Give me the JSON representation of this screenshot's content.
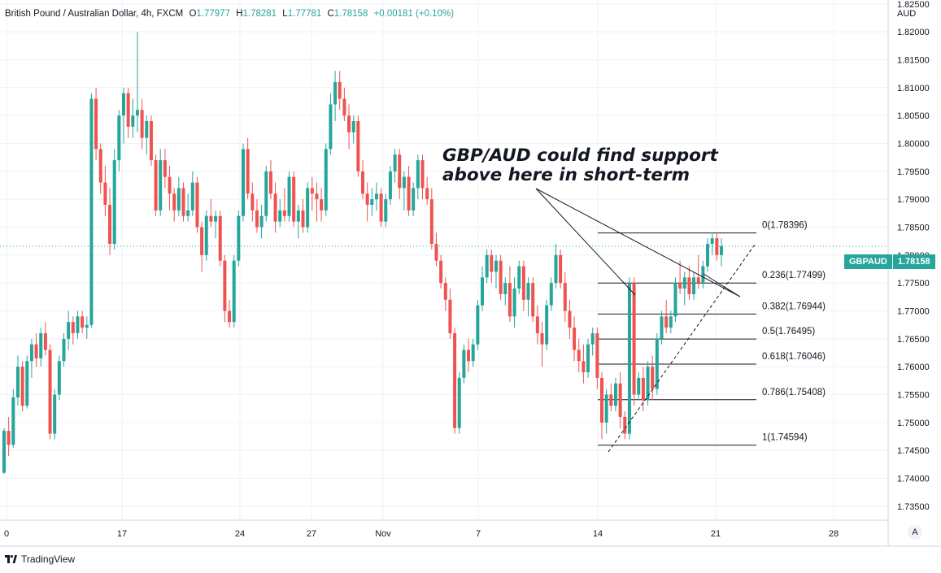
{
  "legend": {
    "title": "British Pound / Australian Dollar, 4h, FXCM",
    "open_label": "O",
    "open": "1.77977",
    "high_label": "H",
    "high": "1.78281",
    "low_label": "L",
    "low": "1.77781",
    "close_label": "C",
    "close": "1.78158",
    "change": "+0.00181 (+0.10%)"
  },
  "currency_label": "AUD",
  "price_tag": {
    "symbol": "GBPAUD",
    "value": "1.78158"
  },
  "annotation": {
    "line1": "GBP/AUD could find support",
    "line2": "above here in short-term"
  },
  "footer": {
    "brand": "TradingView"
  },
  "auto_button": "A",
  "colors": {
    "up": "#26a69a",
    "down": "#ef5350",
    "grid": "#eef1f6",
    "text": "#131722",
    "fib_line": "#131722"
  },
  "chart_data": {
    "type": "candlestick",
    "symbol": "GBPAUD",
    "timeframe": "4h",
    "y_axis": {
      "ticks": [
        "1.82500",
        "1.82000",
        "1.81500",
        "1.81000",
        "1.80500",
        "1.80000",
        "1.79500",
        "1.79000",
        "1.78500",
        "1.78000",
        "1.77500",
        "1.77000",
        "1.76500",
        "1.76000",
        "1.75500",
        "1.75000",
        "1.74500",
        "1.74000",
        "1.73500"
      ],
      "ylim": [
        1.7325,
        1.8257
      ]
    },
    "x_axis": {
      "tick_labels": [
        "0",
        "17",
        "24",
        "27",
        "Nov",
        "7",
        "14",
        "21",
        "28"
      ]
    },
    "series": [
      {
        "name": "GBPAUD",
        "candles": [
          [
            1.741,
            1.749,
            1.7408,
            1.7485
          ],
          [
            1.7485,
            1.751,
            1.744,
            1.746
          ],
          [
            1.746,
            1.756,
            1.7455,
            1.7545
          ],
          [
            1.7545,
            1.762,
            1.753,
            1.76
          ],
          [
            1.76,
            1.761,
            1.752,
            1.753
          ],
          [
            1.753,
            1.762,
            1.7525,
            1.761
          ],
          [
            1.761,
            1.765,
            1.758,
            1.764
          ],
          [
            1.764,
            1.766,
            1.76,
            1.7615
          ],
          [
            1.7615,
            1.767,
            1.76,
            1.766
          ],
          [
            1.766,
            1.768,
            1.762,
            1.763
          ],
          [
            1.763,
            1.764,
            1.747,
            1.748
          ],
          [
            1.748,
            1.756,
            1.747,
            1.755
          ],
          [
            1.755,
            1.762,
            1.754,
            1.761
          ],
          [
            1.761,
            1.766,
            1.76,
            1.765
          ],
          [
            1.765,
            1.77,
            1.763,
            1.768
          ],
          [
            1.768,
            1.769,
            1.764,
            1.766
          ],
          [
            1.766,
            1.77,
            1.765,
            1.769
          ],
          [
            1.769,
            1.77,
            1.766,
            1.767
          ],
          [
            1.767,
            1.769,
            1.765,
            1.7675
          ],
          [
            1.7675,
            1.809,
            1.767,
            1.808
          ],
          [
            1.808,
            1.81,
            1.797,
            1.799
          ],
          [
            1.799,
            1.8,
            1.791,
            1.793
          ],
          [
            1.793,
            1.796,
            1.787,
            1.789
          ],
          [
            1.789,
            1.792,
            1.78,
            1.782
          ],
          [
            1.782,
            1.799,
            1.781,
            1.797
          ],
          [
            1.797,
            1.806,
            1.795,
            1.805
          ],
          [
            1.805,
            1.81,
            1.8,
            1.809
          ],
          [
            1.809,
            1.81,
            1.801,
            1.803
          ],
          [
            1.803,
            1.808,
            1.801,
            1.805
          ],
          [
            1.805,
            1.82,
            1.802,
            1.806
          ],
          [
            1.806,
            1.808,
            1.799,
            1.801
          ],
          [
            1.801,
            1.805,
            1.798,
            1.804
          ],
          [
            1.804,
            1.805,
            1.796,
            1.797
          ],
          [
            1.797,
            1.798,
            1.787,
            1.788
          ],
          [
            1.788,
            1.799,
            1.787,
            1.797
          ],
          [
            1.797,
            1.799,
            1.792,
            1.794
          ],
          [
            1.794,
            1.796,
            1.788,
            1.791
          ],
          [
            1.791,
            1.792,
            1.786,
            1.788
          ],
          [
            1.788,
            1.794,
            1.787,
            1.792
          ],
          [
            1.792,
            1.793,
            1.786,
            1.787
          ],
          [
            1.787,
            1.791,
            1.786,
            1.788
          ],
          [
            1.788,
            1.795,
            1.787,
            1.793
          ],
          [
            1.793,
            1.794,
            1.784,
            1.785
          ],
          [
            1.785,
            1.786,
            1.777,
            1.78
          ],
          [
            1.78,
            1.788,
            1.779,
            1.787
          ],
          [
            1.787,
            1.79,
            1.785,
            1.786
          ],
          [
            1.786,
            1.788,
            1.783,
            1.787
          ],
          [
            1.787,
            1.788,
            1.778,
            1.779
          ],
          [
            1.779,
            1.78,
            1.768,
            1.77
          ],
          [
            1.77,
            1.772,
            1.767,
            1.768
          ],
          [
            1.768,
            1.78,
            1.767,
            1.779
          ],
          [
            1.779,
            1.788,
            1.778,
            1.787
          ],
          [
            1.787,
            1.8,
            1.786,
            1.799
          ],
          [
            1.799,
            1.801,
            1.79,
            1.791
          ],
          [
            1.791,
            1.793,
            1.786,
            1.788
          ],
          [
            1.788,
            1.79,
            1.784,
            1.785
          ],
          [
            1.785,
            1.789,
            1.783,
            1.787
          ],
          [
            1.787,
            1.796,
            1.786,
            1.795
          ],
          [
            1.795,
            1.797,
            1.79,
            1.791
          ],
          [
            1.791,
            1.793,
            1.784,
            1.786
          ],
          [
            1.786,
            1.79,
            1.785,
            1.788
          ],
          [
            1.788,
            1.792,
            1.786,
            1.787
          ],
          [
            1.787,
            1.795,
            1.786,
            1.794
          ],
          [
            1.794,
            1.795,
            1.785,
            1.786
          ],
          [
            1.786,
            1.789,
            1.783,
            1.788
          ],
          [
            1.788,
            1.79,
            1.784,
            1.785
          ],
          [
            1.785,
            1.793,
            1.784,
            1.792
          ],
          [
            1.792,
            1.794,
            1.788,
            1.791
          ],
          [
            1.791,
            1.793,
            1.786,
            1.79
          ],
          [
            1.79,
            1.792,
            1.786,
            1.788
          ],
          [
            1.788,
            1.8,
            1.787,
            1.799
          ],
          [
            1.799,
            1.809,
            1.798,
            1.807
          ],
          [
            1.807,
            1.813,
            1.804,
            1.811
          ],
          [
            1.811,
            1.813,
            1.806,
            1.808
          ],
          [
            1.808,
            1.81,
            1.804,
            1.805
          ],
          [
            1.805,
            1.807,
            1.799,
            1.802
          ],
          [
            1.802,
            1.805,
            1.8,
            1.804
          ],
          [
            1.804,
            1.805,
            1.794,
            1.795
          ],
          [
            1.795,
            1.797,
            1.79,
            1.791
          ],
          [
            1.791,
            1.793,
            1.786,
            1.789
          ],
          [
            1.789,
            1.792,
            1.787,
            1.79
          ],
          [
            1.79,
            1.793,
            1.788,
            1.791
          ],
          [
            1.791,
            1.792,
            1.785,
            1.786
          ],
          [
            1.786,
            1.791,
            1.785,
            1.79
          ],
          [
            1.79,
            1.796,
            1.789,
            1.795
          ],
          [
            1.795,
            1.799,
            1.793,
            1.798
          ],
          [
            1.798,
            1.799,
            1.79,
            1.792
          ],
          [
            1.792,
            1.795,
            1.788,
            1.794
          ],
          [
            1.794,
            1.796,
            1.787,
            1.788
          ],
          [
            1.788,
            1.793,
            1.787,
            1.792
          ],
          [
            1.792,
            1.798,
            1.79,
            1.797
          ],
          [
            1.797,
            1.798,
            1.79,
            1.792
          ],
          [
            1.792,
            1.794,
            1.789,
            1.79
          ],
          [
            1.79,
            1.792,
            1.781,
            1.782
          ],
          [
            1.782,
            1.784,
            1.778,
            1.779
          ],
          [
            1.779,
            1.78,
            1.774,
            1.775
          ],
          [
            1.775,
            1.776,
            1.77,
            1.772
          ],
          [
            1.772,
            1.774,
            1.765,
            1.766
          ],
          [
            1.766,
            1.767,
            1.748,
            1.749
          ],
          [
            1.749,
            1.759,
            1.748,
            1.758
          ],
          [
            1.758,
            1.764,
            1.757,
            1.763
          ],
          [
            1.763,
            1.765,
            1.759,
            1.761
          ],
          [
            1.761,
            1.765,
            1.76,
            1.764
          ],
          [
            1.764,
            1.772,
            1.763,
            1.771
          ],
          [
            1.771,
            1.778,
            1.77,
            1.776
          ],
          [
            1.776,
            1.781,
            1.775,
            1.78
          ],
          [
            1.78,
            1.781,
            1.775,
            1.777
          ],
          [
            1.777,
            1.78,
            1.774,
            1.779
          ],
          [
            1.779,
            1.78,
            1.772,
            1.773
          ],
          [
            1.773,
            1.776,
            1.771,
            1.775
          ],
          [
            1.775,
            1.778,
            1.768,
            1.769
          ],
          [
            1.769,
            1.776,
            1.767,
            1.774
          ],
          [
            1.774,
            1.779,
            1.773,
            1.778
          ],
          [
            1.778,
            1.779,
            1.77,
            1.772
          ],
          [
            1.772,
            1.776,
            1.769,
            1.775
          ],
          [
            1.775,
            1.776,
            1.768,
            1.769
          ],
          [
            1.769,
            1.771,
            1.764,
            1.766
          ],
          [
            1.766,
            1.768,
            1.76,
            1.764
          ],
          [
            1.764,
            1.772,
            1.763,
            1.771
          ],
          [
            1.771,
            1.776,
            1.77,
            1.775
          ],
          [
            1.775,
            1.782,
            1.774,
            1.78
          ],
          [
            1.78,
            1.781,
            1.774,
            1.775
          ],
          [
            1.775,
            1.777,
            1.768,
            1.77
          ],
          [
            1.77,
            1.772,
            1.765,
            1.767
          ],
          [
            1.767,
            1.769,
            1.761,
            1.763
          ],
          [
            1.763,
            1.765,
            1.759,
            1.761
          ],
          [
            1.761,
            1.764,
            1.757,
            1.759
          ],
          [
            1.759,
            1.765,
            1.758,
            1.764
          ],
          [
            1.764,
            1.767,
            1.762,
            1.766
          ],
          [
            1.766,
            1.767,
            1.756,
            1.758
          ],
          [
            1.758,
            1.759,
            1.747,
            1.75
          ],
          [
            1.75,
            1.756,
            1.748,
            1.755
          ],
          [
            1.755,
            1.757,
            1.752,
            1.753
          ],
          [
            1.753,
            1.758,
            1.752,
            1.757
          ],
          [
            1.757,
            1.759,
            1.749,
            1.751
          ],
          [
            1.751,
            1.752,
            1.747,
            1.748
          ],
          [
            1.748,
            1.776,
            1.747,
            1.775
          ],
          [
            1.775,
            1.776,
            1.753,
            1.755
          ],
          [
            1.755,
            1.759,
            1.754,
            1.758
          ],
          [
            1.758,
            1.76,
            1.752,
            1.754
          ],
          [
            1.754,
            1.761,
            1.753,
            1.76
          ],
          [
            1.76,
            1.762,
            1.754,
            1.756
          ],
          [
            1.756,
            1.766,
            1.755,
            1.765
          ],
          [
            1.765,
            1.77,
            1.764,
            1.769
          ],
          [
            1.769,
            1.772,
            1.766,
            1.767
          ],
          [
            1.767,
            1.77,
            1.766,
            1.769
          ],
          [
            1.769,
            1.776,
            1.768,
            1.775
          ],
          [
            1.775,
            1.779,
            1.773,
            1.774
          ],
          [
            1.774,
            1.777,
            1.771,
            1.776
          ],
          [
            1.776,
            1.778,
            1.772,
            1.773
          ],
          [
            1.773,
            1.777,
            1.772,
            1.776
          ],
          [
            1.776,
            1.78,
            1.774,
            1.775
          ],
          [
            1.775,
            1.779,
            1.774,
            1.778
          ],
          [
            1.778,
            1.783,
            1.777,
            1.782
          ],
          [
            1.782,
            1.784,
            1.78,
            1.783
          ],
          [
            1.783,
            1.784,
            1.779,
            1.78
          ],
          [
            1.78,
            1.783,
            1.778,
            1.7816
          ]
        ]
      }
    ],
    "fibonacci": {
      "levels": [
        {
          "label": "0(1.78396)",
          "value": 1.78396
        },
        {
          "label": "0.236(1.77499)",
          "value": 1.77499
        },
        {
          "label": "0.382(1.76944)",
          "value": 1.76944
        },
        {
          "label": "0.5(1.76495)",
          "value": 1.76495
        },
        {
          "label": "0.618(1.76046)",
          "value": 1.76046
        },
        {
          "label": "0.786(1.75408)",
          "value": 1.75408
        },
        {
          "label": "1(1.74594)",
          "value": 1.74594
        }
      ]
    },
    "current_price": 1.78158
  }
}
